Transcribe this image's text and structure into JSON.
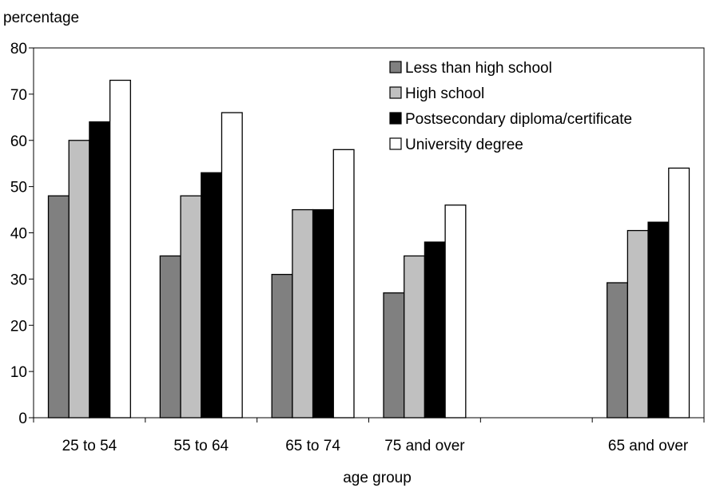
{
  "chart_data": {
    "type": "bar",
    "ylabel": "percentage",
    "xlabel": "age group",
    "categories": [
      "25 to 54",
      "55 to 64",
      "65 to 74",
      "75 and over",
      "",
      "65 and over"
    ],
    "ylim": [
      0,
      80
    ],
    "yticks": [
      0,
      10,
      20,
      30,
      40,
      50,
      60,
      70,
      80
    ],
    "grid": false,
    "legend_position": "top-right",
    "series": [
      {
        "name": "Less than high school",
        "color": "#808080",
        "values": [
          48,
          35,
          31,
          27,
          null,
          29.2
        ]
      },
      {
        "name": "High school",
        "color": "#c0c0c0",
        "values": [
          60,
          48,
          45,
          35,
          null,
          40.5
        ]
      },
      {
        "name": "Postsecondary diploma/certificate",
        "color": "#000000",
        "values": [
          64,
          53,
          45,
          38,
          null,
          42.3
        ]
      },
      {
        "name": "University degree",
        "color": "#ffffff",
        "values": [
          73,
          66,
          58,
          46,
          null,
          54
        ]
      }
    ]
  }
}
